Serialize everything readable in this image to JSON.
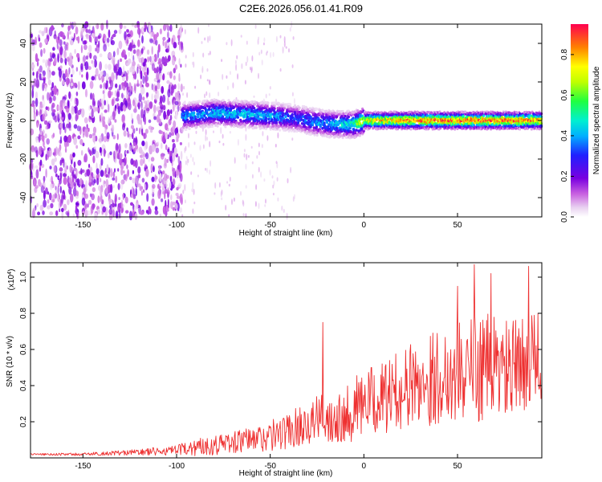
{
  "title": "C2E6.2026.056.01.41.R09",
  "chart_data": [
    {
      "type": "heatmap",
      "name": "spectrogram",
      "xlabel": "Height of straight line (km)",
      "ylabel": "Frequency (Hz)",
      "xlim": [
        -178,
        95
      ],
      "ylim": [
        -50,
        50
      ],
      "xticks": [
        -150,
        -100,
        -50,
        0,
        50
      ],
      "yticks": [
        -40,
        -20,
        0,
        20,
        40
      ],
      "xtick_labels": [
        "-150",
        "-100",
        "-50",
        "0",
        "50"
      ],
      "ytick_labels": [
        "-40",
        "-20",
        "0",
        "20",
        "40"
      ],
      "colorbar": {
        "label": "Normalized spectral amplitude",
        "range": [
          0,
          0.95
        ],
        "ticks": [
          0.0,
          0.2,
          0.4,
          0.6,
          0.8
        ],
        "tick_labels": [
          "0.0",
          "0.2",
          "0.4",
          "0.6",
          "0.8"
        ],
        "colormap": "white-magenta-purple-blue-cyan-green-yellow-orange-red"
      },
      "features": {
        "noise_region_x": [
          -178,
          -97
        ],
        "noise_amplitude": 0.15,
        "signal_start_x": -97,
        "ridge_x": [
          -97,
          -80,
          -60,
          -45,
          -35,
          -25,
          -15,
          -5,
          0,
          20,
          40,
          60,
          80,
          95
        ],
        "ridge_freq_hz": [
          2,
          4,
          3,
          2,
          1,
          -1,
          -2,
          -2,
          0,
          0,
          0,
          0,
          0,
          0
        ],
        "ridge_amplitude": [
          0.4,
          0.45,
          0.45,
          0.4,
          0.35,
          0.4,
          0.45,
          0.55,
          0.75,
          0.85,
          0.9,
          0.9,
          0.9,
          0.85
        ]
      }
    },
    {
      "type": "line",
      "name": "snr",
      "xlabel": "Height of straight line (km)",
      "ylabel": "SNR (10 * v/v)",
      "y_multiplier_label": "(x10",
      "y_multiplier_exp": "4",
      "y_multiplier_close": ")",
      "xlim": [
        -178,
        95
      ],
      "ylim": [
        0,
        1.08
      ],
      "xticks": [
        -150,
        -100,
        -50,
        0,
        50
      ],
      "yticks": [
        0.2,
        0.4,
        0.6,
        0.8,
        1.0
      ],
      "xtick_labels": [
        "-150",
        "-100",
        "-50",
        "0",
        "50"
      ],
      "ytick_labels": [
        "0.2",
        "0.4",
        "0.6",
        "0.8",
        "1.0"
      ],
      "series": [
        {
          "name": "SNR",
          "color": "#ee3030",
          "envelope_x": [
            -178,
            -150,
            -125,
            -100,
            -90,
            -75,
            -60,
            -50,
            -40,
            -30,
            -20,
            -10,
            0,
            10,
            20,
            30,
            40,
            50,
            60,
            70,
            80,
            90,
            95
          ],
          "envelope_mean": [
            0.02,
            0.02,
            0.03,
            0.04,
            0.06,
            0.08,
            0.1,
            0.12,
            0.15,
            0.2,
            0.22,
            0.25,
            0.3,
            0.33,
            0.38,
            0.42,
            0.45,
            0.48,
            0.5,
            0.5,
            0.48,
            0.55,
            0.55
          ],
          "envelope_spread": [
            0.005,
            0.008,
            0.015,
            0.03,
            0.05,
            0.06,
            0.07,
            0.09,
            0.1,
            0.12,
            0.14,
            0.17,
            0.19,
            0.2,
            0.22,
            0.25,
            0.27,
            0.28,
            0.3,
            0.3,
            0.28,
            0.25,
            0.22
          ],
          "peaks": [
            {
              "x": 59,
              "y": 1.07
            },
            {
              "x": 88,
              "y": 1.06
            },
            {
              "x": 68,
              "y": 1.02
            },
            {
              "x": 50,
              "y": 0.95
            },
            {
              "x": -22,
              "y": 0.75
            },
            {
              "x": 93,
              "y": 0.8
            }
          ]
        }
      ]
    }
  ]
}
